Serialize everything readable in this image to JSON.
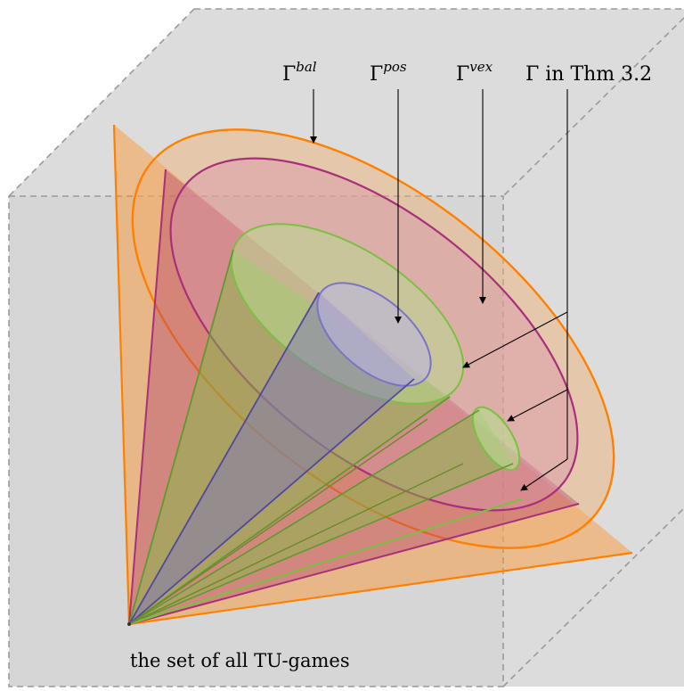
{
  "figure": {
    "labels": {
      "bal": {
        "base": "Γ",
        "sup": "bal"
      },
      "pos": {
        "base": "Γ",
        "sup": "pos"
      },
      "vex": {
        "base": "Γ",
        "sup": "vex"
      },
      "thm": {
        "text": "Γ in Thm 3.2"
      }
    },
    "caption": "the set of all TU-games",
    "colors": {
      "background_box": "#d8d8d8",
      "bal_cone": "#ff8c1a",
      "outer_magenta_cone": "#a8327a",
      "vex_cone": "#7cc043",
      "pos_cone": "#7b73c4"
    }
  }
}
